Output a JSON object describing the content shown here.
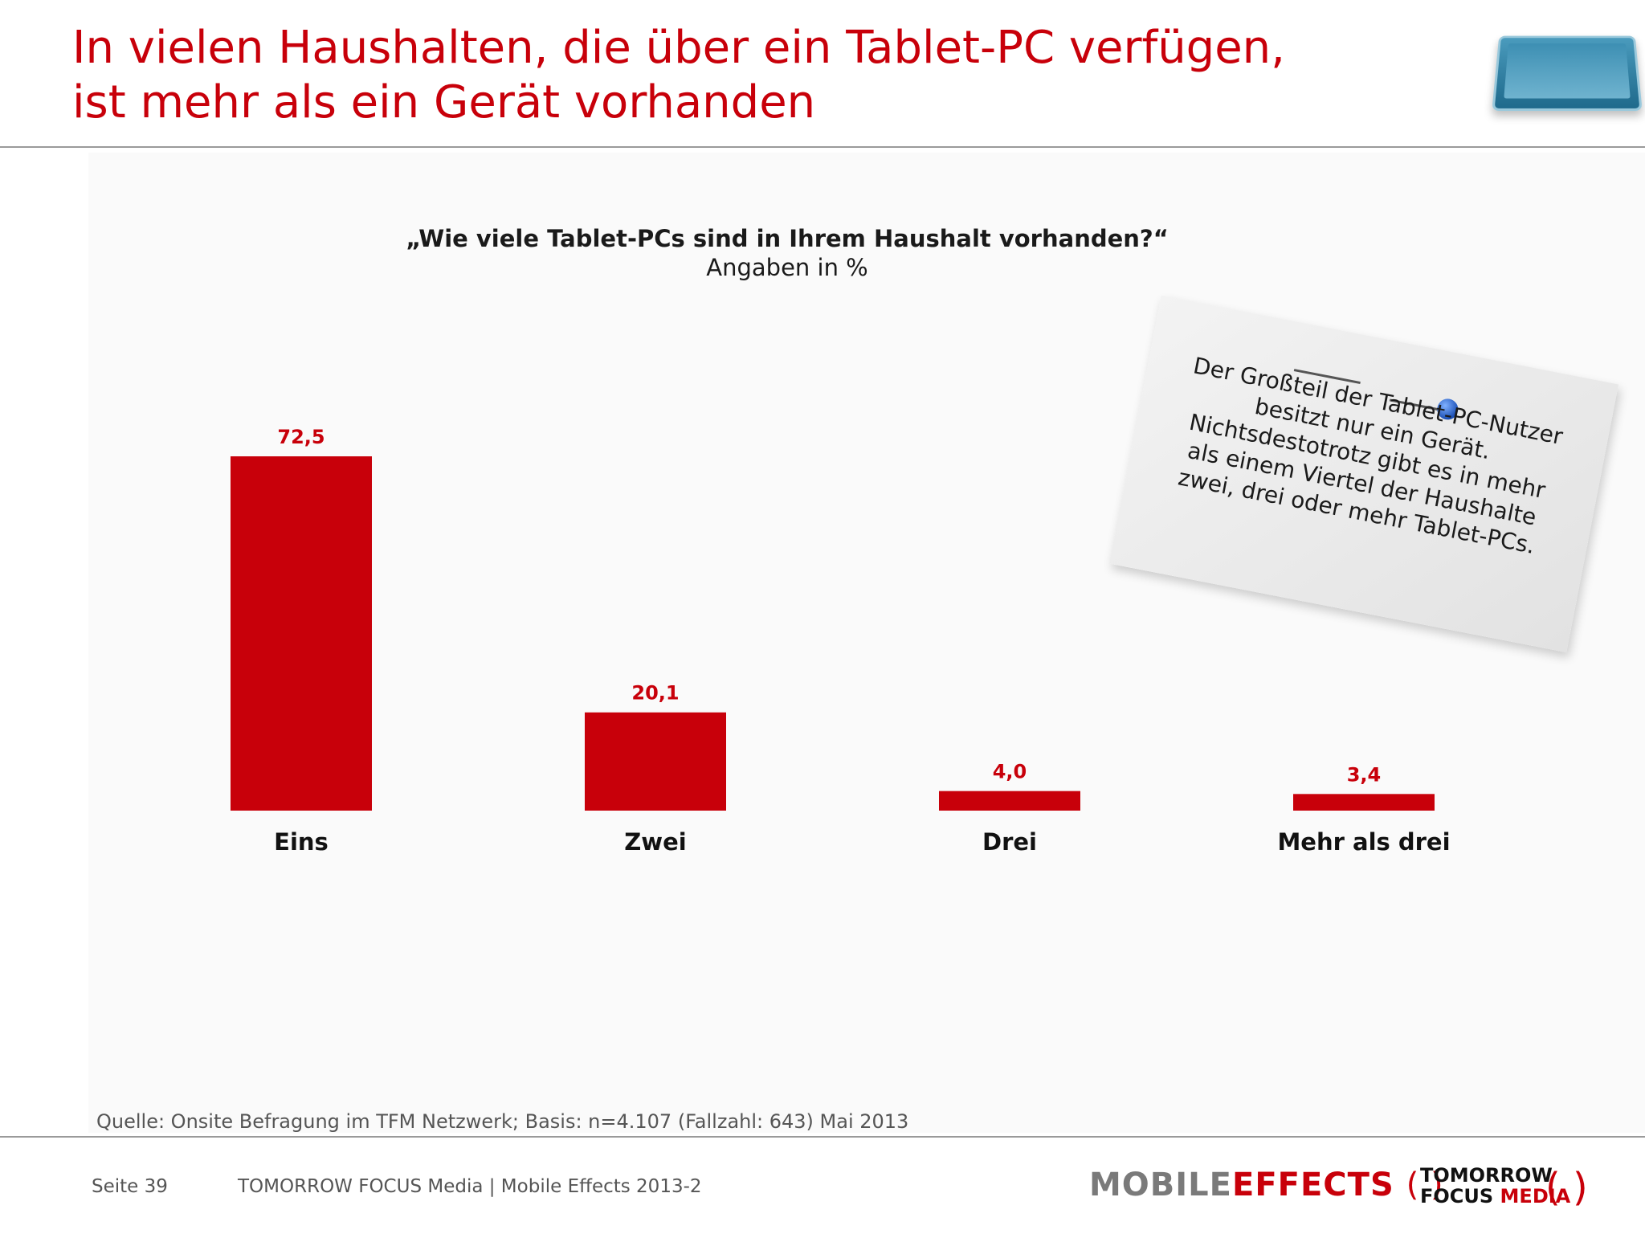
{
  "slide": {
    "title_line1": "In vielen Haushalten, die über ein Tablet-PC verfügen,",
    "title_line2": "ist mehr als ein Gerät vorhanden",
    "question": "„Wie viele Tablet-PCs sind in Ihrem Haushalt vorhanden?“",
    "unit": "Angaben in %",
    "note_text": "Der Großteil der Tablet-PC-Nutzer besitzt nur ein Gerät. Nichtsdestotrotz gibt es in mehr als einem Viertel der Haushalte zwei, drei oder mehr Tablet-PCs.",
    "source": "Quelle: Onsite Befragung im TFM Netzwerk; Basis: n=4.107 (Fallzahl: 643) Mai 2013",
    "footer_page": "Seite 39",
    "footer_text": "TOMORROW FOCUS Media  |  Mobile Effects 2013-2",
    "logo_mobile": "MOBILE",
    "logo_effects": "EFFECTS",
    "logo_paren": "( )",
    "logo_tfm_line1": "TOMORROW",
    "logo_tfm_focus": "FOCUS",
    "logo_tfm_media": "MEDIA",
    "logo_tfm_paren": "( )"
  },
  "colors": {
    "accent": "#c8000a",
    "text": "#111111",
    "muted": "#555555"
  },
  "chart_data": {
    "type": "bar",
    "title": "„Wie viele Tablet-PCs sind in Ihrem Haushalt vorhanden?“",
    "subtitle": "Angaben in %",
    "categories": [
      "Eins",
      "Zwei",
      "Drei",
      "Mehr als drei"
    ],
    "values": [
      72.5,
      20.1,
      4.0,
      3.4
    ],
    "value_labels": [
      "72,5",
      "20,1",
      "4,0",
      "3,4"
    ],
    "ylim": [
      0,
      72.5
    ],
    "grid": false,
    "legend": "none"
  }
}
